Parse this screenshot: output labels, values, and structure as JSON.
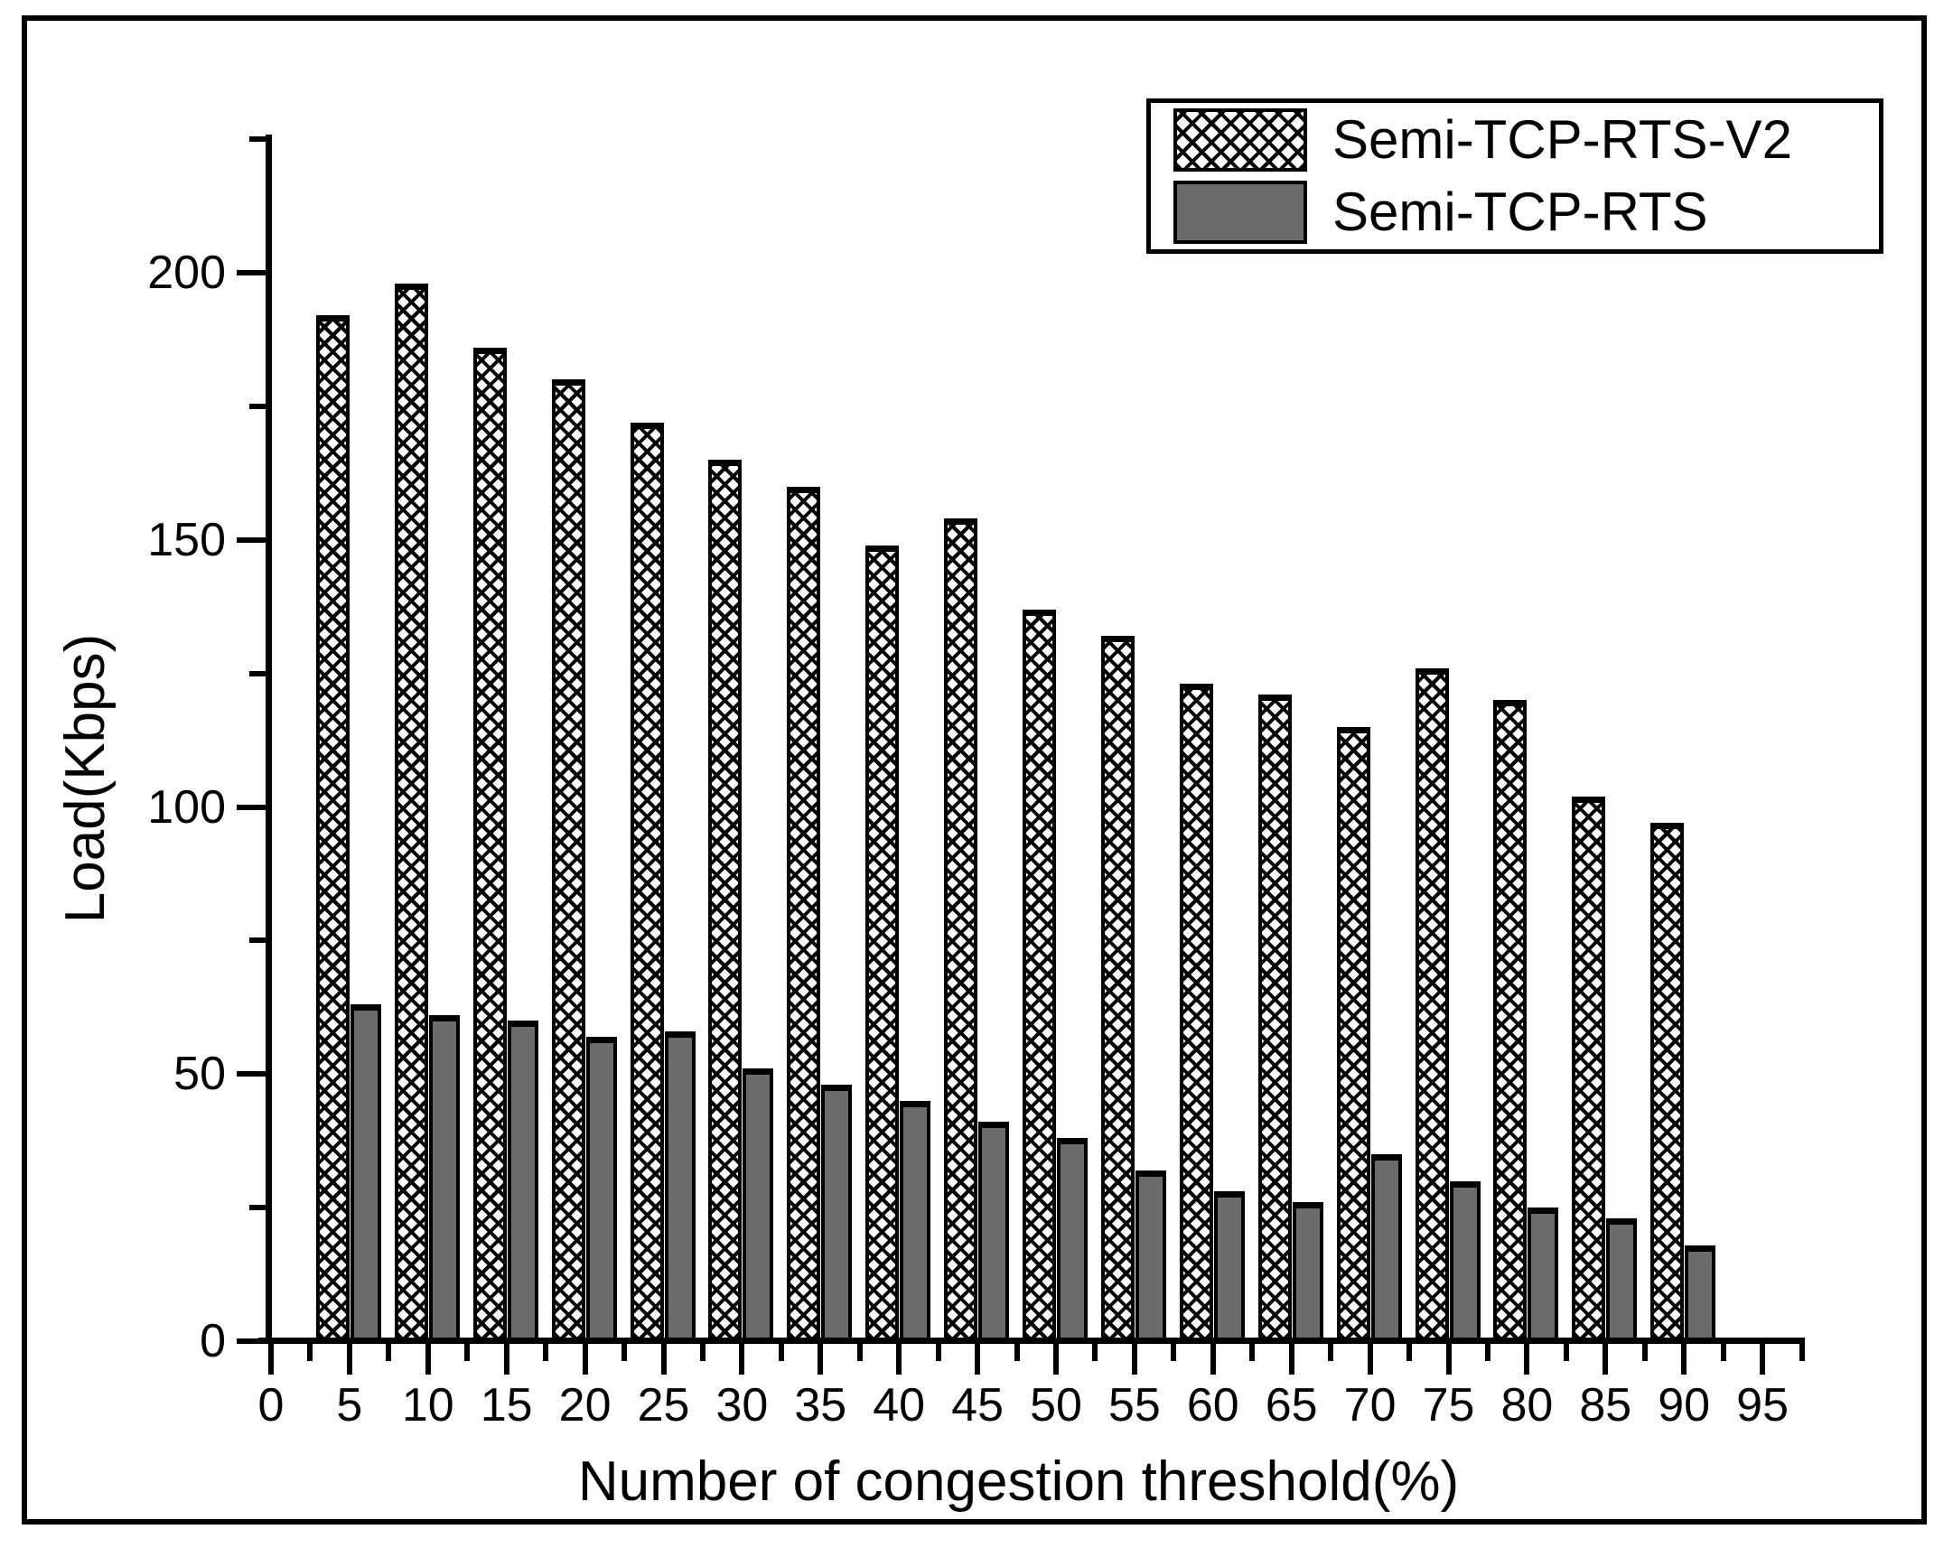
{
  "figure": {
    "background": "#ffffff",
    "frame_color": "#000000"
  },
  "chart_data": {
    "type": "bar",
    "title": "",
    "xlabel": "Number of congestion threshold(%)",
    "ylabel": "Load(Kbps)",
    "categories": [
      5,
      10,
      15,
      20,
      25,
      30,
      35,
      40,
      45,
      50,
      55,
      60,
      65,
      70,
      75,
      80,
      85,
      90
    ],
    "series": [
      {
        "name": "Semi-TCP-RTS-V2",
        "style": "crosshatch",
        "fill": "#ffffff",
        "hatch_color": "#000000",
        "values": [
          192,
          198,
          186,
          180,
          172,
          165,
          160,
          149,
          154,
          137,
          132,
          123,
          121,
          115,
          126,
          120,
          102,
          97
        ]
      },
      {
        "name": "Semi-TCP-RTS",
        "style": "solid",
        "fill": "#6b6b6b",
        "values": [
          63,
          61,
          60,
          57,
          58,
          51,
          48,
          45,
          41,
          38,
          32,
          28,
          26,
          35,
          30,
          25,
          23,
          18
        ]
      }
    ],
    "xlim": [
      0,
      97.5
    ],
    "ylim": [
      0,
      225
    ],
    "x_major_ticks": [
      0,
      5,
      10,
      15,
      20,
      25,
      30,
      35,
      40,
      45,
      50,
      55,
      60,
      65,
      70,
      75,
      80,
      85,
      90,
      95
    ],
    "y_major_ticks": [
      0,
      50,
      100,
      150,
      200
    ],
    "y_minor_ticks": [
      25,
      75,
      125,
      175,
      225
    ],
    "x_minor_step": 2.5,
    "grid": false,
    "legend_position": "top-right"
  },
  "legend": {
    "entries": [
      {
        "label": "Semi-TCP-RTS-V2",
        "swatch": "crosshatch-swatch"
      },
      {
        "label": "Semi-TCP-RTS",
        "swatch": "gray-swatch"
      }
    ]
  }
}
